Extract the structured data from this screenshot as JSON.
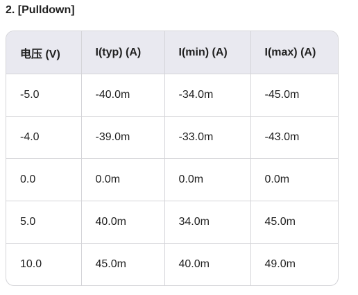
{
  "header": {
    "title": "2. [Pulldown]"
  },
  "table": {
    "columns": [
      "电压 (V)",
      "I(typ) (A)",
      "I(min) (A)",
      "I(max) (A)"
    ],
    "rows": [
      [
        "-5.0",
        "-40.0m",
        "-34.0m",
        "-45.0m"
      ],
      [
        "-4.0",
        "-39.0m",
        "-33.0m",
        "-43.0m"
      ],
      [
        "0.0",
        "0.0m",
        "0.0m",
        "0.0m"
      ],
      [
        "5.0",
        "40.0m",
        "34.0m",
        "45.0m"
      ],
      [
        "10.0",
        "45.0m",
        "40.0m",
        "49.0m"
      ]
    ]
  }
}
